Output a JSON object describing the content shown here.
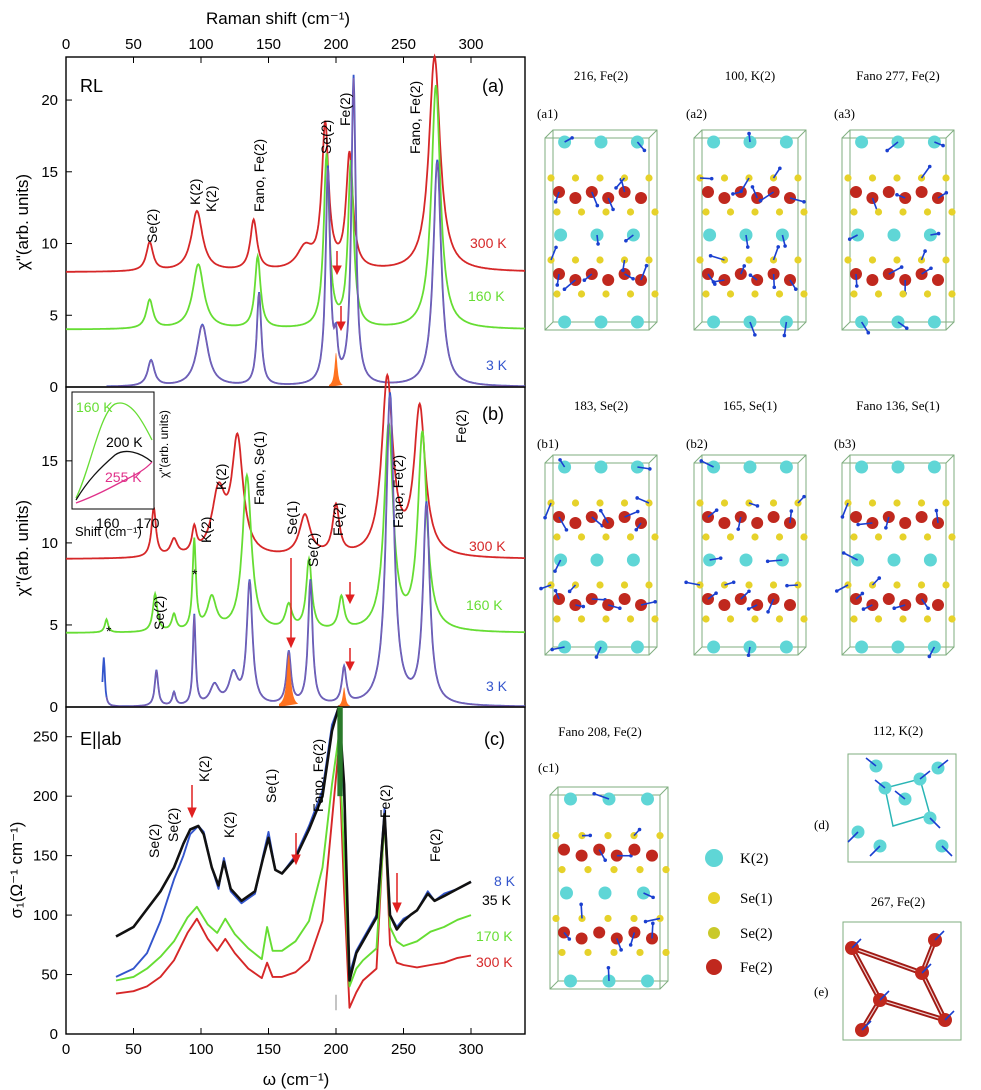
{
  "colors": {
    "c300": "#d62728",
    "c160": "#66dd33",
    "c3": "#3355cc",
    "c35": "#111111",
    "fit": "#8a5fa8",
    "orange": "#ff6a13",
    "pink": "#e0308a",
    "K": "#5fd6d6",
    "Se": "#e6d22a",
    "Fe": "#c0281e",
    "arrow": "#1a3fd0"
  },
  "panel_a": {
    "top_axis_label": "Raman shift (cm⁻¹)",
    "y_label": "χ\"(arb. units)",
    "tag": "(a)",
    "title": "RL",
    "peak_labels": [
      "Se(2)",
      "K(2)",
      "K(2)",
      "Fano, Fe(2)",
      "Se(2)",
      "Fe(2)",
      "Fano, Fe(2)"
    ],
    "temp_labels": [
      "300 K",
      "160 K",
      "3 K"
    ]
  },
  "panel_b": {
    "y_label": "χ\"(arb. units)",
    "tag": "(b)",
    "peak_labels": [
      "Se(2)",
      "K(2)",
      "K(2)",
      "Fano, Se(1)",
      "Se(1)",
      "Se(2)",
      "Fe(2)",
      "Fano, Fe(2)",
      "Fe(2)"
    ],
    "temp_labels": [
      "300 K",
      "160 K",
      "3 K"
    ],
    "stars": [
      "*",
      "*"
    ],
    "inset": {
      "xlabel": "Shift (cm⁻¹)",
      "ylabel": "χ\"(arb. units)",
      "labels": [
        "160 K",
        "200 K",
        "255 K"
      ],
      "ticks": [
        "160",
        "170"
      ]
    }
  },
  "panel_c": {
    "x_label": "ω (cm⁻¹)",
    "y_label": "σ₁(Ω⁻¹ cm⁻¹)",
    "tag": "(c)",
    "title": "E||ab",
    "peak_labels": [
      "Se(2)",
      "Se(2)",
      "K(2)",
      "K(2)",
      "Se(1)",
      "Fano, Fe(2)",
      "Fe(2)",
      "Fe(2)"
    ],
    "temp_labels": [
      "8 K",
      "35 K",
      "170 K",
      "300 K"
    ]
  },
  "chart_data": [
    {
      "type": "line",
      "panel": "a",
      "title": "RL",
      "xlabel": "Raman shift (cm⁻¹)",
      "ylabel": "χ\"(arb. units)",
      "xlim": [
        0,
        340
      ],
      "ylim": [
        0,
        23
      ],
      "x_ticks": [
        0,
        50,
        100,
        150,
        200,
        250,
        300
      ],
      "y_ticks": [
        0,
        5,
        10,
        15,
        20
      ],
      "series": [
        {
          "name": "300 K",
          "offset": 8,
          "peaks": [
            [
              62,
              2,
              3
            ],
            [
              97,
              4.2,
              5
            ],
            [
              139,
              3.5,
              3
            ],
            [
              177,
              1.5,
              7
            ],
            [
              192,
              10,
              3
            ],
            [
              210,
              8,
              3
            ],
            [
              273,
              15,
              5
            ]
          ]
        },
        {
          "name": "160 K",
          "offset": 4,
          "peaks": [
            [
              62,
              2,
              3
            ],
            [
              98,
              4.5,
              5
            ],
            [
              142,
              5,
              2.5
            ],
            [
              193,
              12,
              2.5
            ],
            [
              211,
              11.5,
              2.5
            ],
            [
              274,
              17,
              4
            ]
          ]
        },
        {
          "name": "3 K",
          "offset": 0,
          "peaks": [
            [
              63,
              1.8,
              3
            ],
            [
              101,
              4.3,
              5
            ],
            [
              143,
              6.5,
              2
            ],
            [
              194,
              15,
              2
            ],
            [
              200,
              2.4,
              1.5
            ],
            [
              213,
              21.5,
              2
            ],
            [
              275,
              15.8,
              3.5
            ]
          ]
        }
      ]
    },
    {
      "type": "line",
      "panel": "b",
      "ylabel": "χ\"(arb. units)",
      "xlim": [
        0,
        340
      ],
      "ylim": [
        0,
        19.5
      ],
      "y_ticks": [
        0,
        5,
        10,
        15
      ],
      "series": [
        {
          "name": "300 K",
          "offset": 9,
          "peaks": [
            [
              65,
              3,
              2
            ],
            [
              80,
              1,
              3
            ],
            [
              95,
              1.5,
              2
            ],
            [
              113,
              3.8,
              6
            ],
            [
              127,
              7,
              5
            ],
            [
              177,
              2.5,
              5
            ],
            [
              200,
              3,
              3
            ],
            [
              238,
              10.8,
              5
            ],
            [
              262,
              9,
              5
            ]
          ]
        },
        {
          "name": "160 K",
          "offset": 4.5,
          "peaks": [
            [
              30,
              0.8,
              1.5
            ],
            [
              66,
              2.3,
              2
            ],
            [
              80,
              1,
              2
            ],
            [
              95,
              5.5,
              1.5
            ],
            [
              108,
              2,
              4
            ],
            [
              134,
              9.5,
              4
            ],
            [
              165,
              1.5,
              3
            ],
            [
              180,
              4.3,
              2.5
            ],
            [
              204,
              2,
              2.5
            ],
            [
              239,
              12.5,
              4
            ],
            [
              264,
              12,
              4
            ]
          ]
        },
        {
          "name": "3 K",
          "offset": 0,
          "peaks": [
            [
              28,
              3,
              1
            ],
            [
              67,
              2.2,
              1.5
            ],
            [
              80,
              0.8,
              1.5
            ],
            [
              95,
              5.5,
              1.2
            ],
            [
              110,
              1.2,
              4
            ],
            [
              124,
              1.8,
              4
            ],
            [
              136,
              7.5,
              2.5
            ],
            [
              165,
              3.2,
              2
            ],
            [
              181,
              7.6,
              2
            ],
            [
              206,
              2.2,
              2
            ],
            [
              240,
              19,
              3.5
            ],
            [
              267,
              12.2,
              3
            ]
          ]
        }
      ]
    },
    {
      "type": "line",
      "panel": "c",
      "title": "E||ab",
      "xlabel": "ω (cm⁻¹)",
      "ylabel": "σ₁(Ω⁻¹ cm⁻¹)",
      "xlim": [
        0,
        340
      ],
      "ylim": [
        0,
        275
      ],
      "x_ticks": [
        0,
        50,
        100,
        150,
        200,
        250,
        300
      ],
      "y_ticks": [
        0,
        50,
        100,
        150,
        200,
        250
      ],
      "series": [
        {
          "name": "300 K",
          "x": [
            37,
            50,
            60,
            70,
            80,
            90,
            97,
            105,
            112,
            118,
            125,
            135,
            145,
            149,
            153,
            160,
            170,
            180,
            190,
            197,
            202,
            206,
            210,
            215,
            220,
            230,
            236,
            240,
            245,
            250,
            260,
            270,
            280,
            290,
            300
          ],
          "y": [
            34,
            36,
            40,
            48,
            62,
            85,
            97,
            80,
            70,
            80,
            68,
            55,
            47,
            60,
            48,
            48,
            52,
            62,
            95,
            180,
            240,
            120,
            22,
            35,
            45,
            55,
            185,
            75,
            60,
            58,
            56,
            58,
            60,
            64,
            66
          ]
        },
        {
          "name": "170 K",
          "x": [
            37,
            50,
            60,
            70,
            80,
            90,
            97,
            105,
            112,
            118,
            125,
            135,
            145,
            149,
            153,
            160,
            170,
            180,
            190,
            197,
            202,
            206,
            210,
            215,
            220,
            230,
            236,
            240,
            245,
            250,
            260,
            270,
            280,
            290,
            300
          ],
          "y": [
            45,
            48,
            55,
            65,
            78,
            98,
            107,
            92,
            85,
            97,
            84,
            72,
            63,
            90,
            70,
            70,
            78,
            95,
            140,
            210,
            250,
            150,
            40,
            55,
            62,
            72,
            180,
            90,
            78,
            74,
            78,
            86,
            90,
            96,
            100
          ]
        },
        {
          "name": "8 K",
          "x": [
            37,
            50,
            60,
            70,
            80,
            87,
            92,
            98,
            102,
            108,
            113,
            117,
            122,
            130,
            140,
            146,
            150,
            155,
            160,
            170,
            180,
            190,
            197,
            202,
            206,
            210,
            215,
            220,
            230,
            236,
            240,
            245,
            250,
            255,
            260,
            268,
            273,
            280,
            290,
            300
          ],
          "y": [
            48,
            55,
            68,
            95,
            130,
            150,
            168,
            175,
            170,
            140,
            122,
            148,
            120,
            110,
            118,
            150,
            170,
            138,
            135,
            150,
            175,
            205,
            260,
            275,
            200,
            50,
            70,
            80,
            100,
            190,
            100,
            90,
            97,
            100,
            104,
            120,
            112,
            118,
            122,
            128
          ]
        },
        {
          "name": "35 K",
          "x": [
            37,
            50,
            60,
            70,
            80,
            87,
            92,
            98,
            102,
            108,
            113,
            117,
            122,
            130,
            140,
            146,
            150,
            155,
            160,
            170,
            180,
            190,
            197,
            202,
            206,
            210,
            215,
            220,
            230,
            236,
            240,
            245,
            250,
            255,
            260,
            268,
            273,
            280,
            290,
            300
          ],
          "y": [
            82,
            90,
            105,
            120,
            140,
            160,
            172,
            175,
            168,
            140,
            125,
            145,
            122,
            112,
            120,
            148,
            165,
            138,
            135,
            148,
            172,
            200,
            255,
            275,
            210,
            45,
            68,
            78,
            98,
            185,
            100,
            88,
            95,
            100,
            104,
            118,
            112,
            116,
            122,
            128
          ]
        }
      ]
    }
  ],
  "structures": {
    "titles": [
      "216, Fe(2)",
      "100, K(2)",
      "Fano 277, Fe(2)",
      "183, Se(2)",
      "165, Se(1)",
      "Fano 136, Se(1)",
      "Fano 208, Fe(2)",
      "112, K(2)",
      "267, Fe(2)"
    ],
    "tags": [
      "(a1)",
      "(a2)",
      "(a3)",
      "(b1)",
      "(b2)",
      "(b3)",
      "(c1)",
      "(d)",
      "(e)"
    ],
    "legend": [
      "K(2)",
      "Se(1)",
      "Se(2)",
      "Fe(2)"
    ]
  }
}
